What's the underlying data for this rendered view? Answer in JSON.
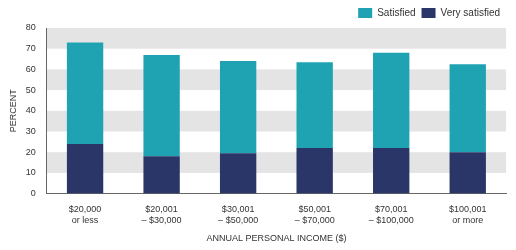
{
  "chart_data": {
    "type": "bar",
    "stacked": true,
    "categories": [
      [
        "$20,000",
        "or less"
      ],
      [
        "$20,001",
        "– $30,000"
      ],
      [
        "$30,001",
        "– $50,000"
      ],
      [
        "$50,001",
        "– $70,000"
      ],
      [
        "$70,001",
        "– $100,000"
      ],
      [
        "$100,001",
        "or more"
      ]
    ],
    "series": [
      {
        "name": "Very satisfied",
        "color": "#2b3668",
        "values": [
          24,
          18,
          19.5,
          22,
          22,
          20
        ]
      },
      {
        "name": "Satisfied",
        "color": "#1fa3b3",
        "values": [
          49,
          49,
          44.5,
          41.5,
          46,
          42.5
        ]
      }
    ],
    "x_label": "ANNUAL PERSONAL INCOME ($)",
    "y_label": "PERCENT",
    "ylim": [
      0,
      80
    ],
    "yticks": [
      0,
      10,
      20,
      30,
      40,
      50,
      60,
      70,
      80
    ],
    "grid": true,
    "legend": "top right"
  }
}
